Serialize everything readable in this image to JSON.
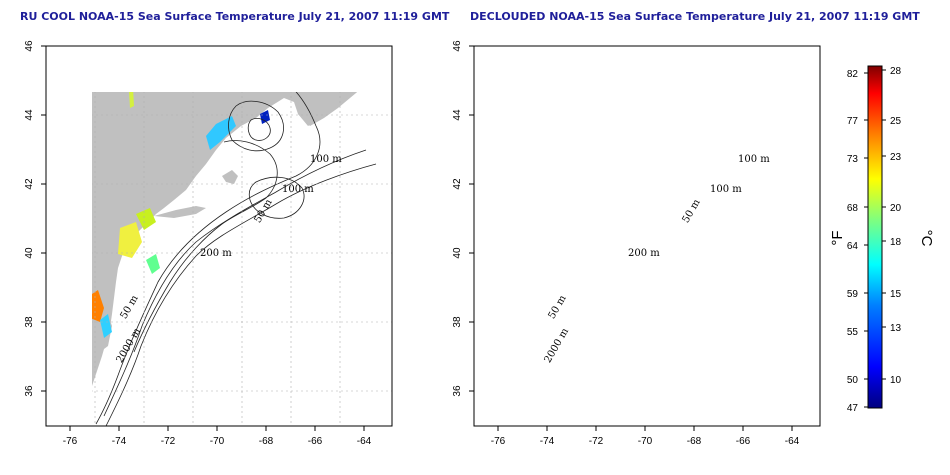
{
  "panels": [
    {
      "title": "RU COOL NOAA-15 Sea Surface Temperature July 21, 2007 11:19 GMT",
      "contour_labels": [
        "100 m",
        "100 m",
        "50 m",
        "200 m",
        "50 m",
        "2000 m"
      ]
    },
    {
      "title": "DECLOUDED NOAA-15 Sea Surface Temperature July 21, 2007 11:19 GMT",
      "contour_labels": [
        "100 m",
        "100 m",
        "50 m",
        "200 m",
        "50 m",
        "2000 m"
      ]
    }
  ],
  "axes": {
    "x_ticks": [
      "-76",
      "-74",
      "-72",
      "-70",
      "-68",
      "-66",
      "-64"
    ],
    "y_ticks": [
      "46",
      "44",
      "42",
      "40",
      "38",
      "36"
    ],
    "xlim": [
      -77,
      -63
    ],
    "ylim": [
      35,
      46
    ]
  },
  "colorbar": {
    "fahrenheit_ticks": [
      "82",
      "77",
      "73",
      "68",
      "64",
      "59",
      "55",
      "50",
      "47"
    ],
    "celsius_ticks": [
      "28",
      "25",
      "23",
      "20",
      "18",
      "15",
      "13",
      "10"
    ],
    "fahrenheit_unit": "°F",
    "celsius_unit": "°C",
    "colors": [
      "#00007f",
      "#0000ff",
      "#007fff",
      "#00ffff",
      "#7fff7f",
      "#ffff00",
      "#ff7f00",
      "#ff0000",
      "#7f0000"
    ]
  },
  "colors": {
    "land": "#c0c0c0",
    "ocean": "#ffffff",
    "title": "#1f1f9a",
    "grid": "#b0b0b0"
  }
}
